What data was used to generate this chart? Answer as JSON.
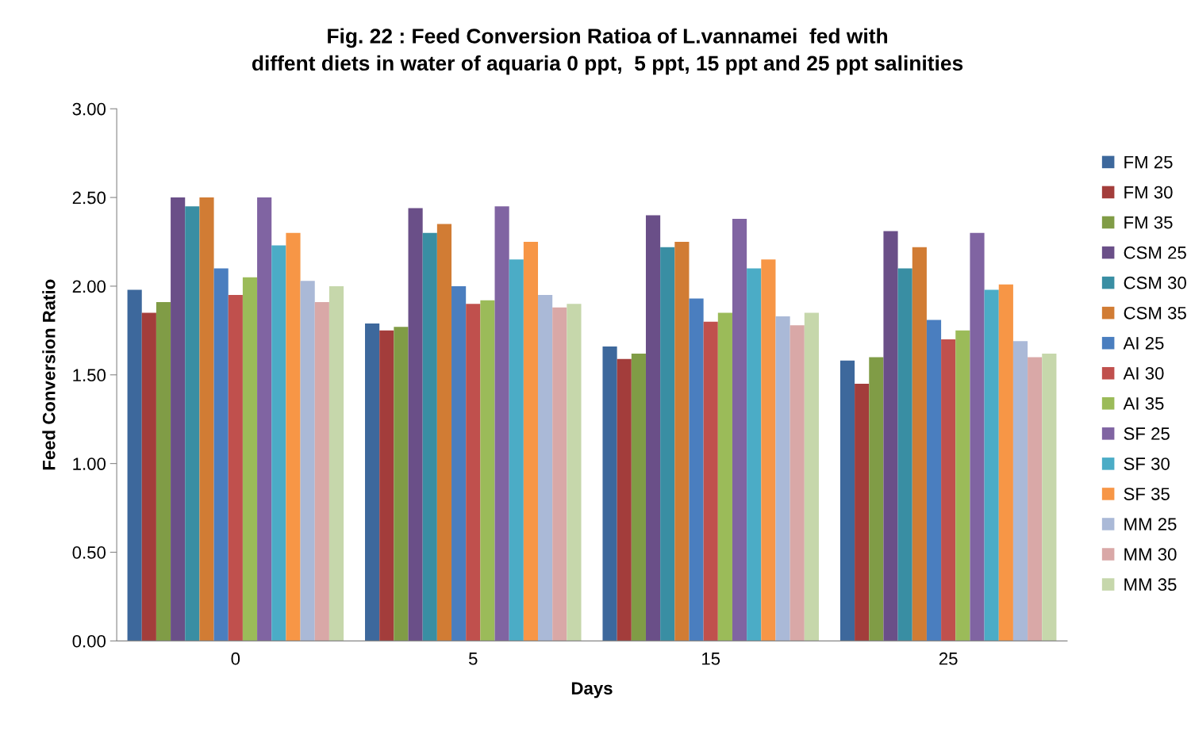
{
  "chart_data": {
    "type": "bar",
    "title": "Fig. 22 : Feed Conversion Ratioa of L.vannamei  fed with\ndiffent diets in water of aquaria 0 ppt,  5 ppt, 15 ppt and 25 ppt salinities",
    "xlabel": "Days",
    "ylabel": "Feed Conversion Ratio",
    "categories": [
      "0",
      "5",
      "15",
      "25"
    ],
    "ylim": [
      0,
      3
    ],
    "yticks": [
      {
        "value": 0,
        "label": "0.00"
      },
      {
        "value": 0.5,
        "label": "0.50"
      },
      {
        "value": 1,
        "label": "1.00"
      },
      {
        "value": 1.5,
        "label": "1.50"
      },
      {
        "value": 2,
        "label": "2.00"
      },
      {
        "value": 2.5,
        "label": "2.50"
      },
      {
        "value": 3,
        "label": "3.00"
      }
    ],
    "grid": false,
    "legend": "right",
    "series": [
      {
        "name": "FM 25",
        "color": "#3d689c",
        "values": [
          1.98,
          1.79,
          1.66,
          1.58
        ]
      },
      {
        "name": "FM 30",
        "color": "#a33d3b",
        "values": [
          1.85,
          1.75,
          1.59,
          1.45
        ]
      },
      {
        "name": "FM 35",
        "color": "#809c46",
        "values": [
          1.91,
          1.77,
          1.62,
          1.6
        ]
      },
      {
        "name": "CSM 25",
        "color": "#6a4f88",
        "values": [
          2.5,
          2.44,
          2.4,
          2.31
        ]
      },
      {
        "name": "CSM 30",
        "color": "#398ea3",
        "values": [
          2.45,
          2.3,
          2.22,
          2.1
        ]
      },
      {
        "name": "CSM 35",
        "color": "#d17c34",
        "values": [
          2.5,
          2.35,
          2.25,
          2.22
        ]
      },
      {
        "name": "AI 25",
        "color": "#4a7ebf",
        "values": [
          2.1,
          2.0,
          1.93,
          1.81
        ]
      },
      {
        "name": "AI 30",
        "color": "#c0504d",
        "values": [
          1.95,
          1.9,
          1.8,
          1.7
        ]
      },
      {
        "name": "AI 35",
        "color": "#9bbb59",
        "values": [
          2.05,
          1.92,
          1.85,
          1.75
        ]
      },
      {
        "name": "SF 25",
        "color": "#8064a2",
        "values": [
          2.5,
          2.45,
          2.38,
          2.3
        ]
      },
      {
        "name": "SF 30",
        "color": "#4bacc6",
        "values": [
          2.23,
          2.15,
          2.1,
          1.98
        ]
      },
      {
        "name": "SF 35",
        "color": "#f79646",
        "values": [
          2.3,
          2.25,
          2.15,
          2.01
        ]
      },
      {
        "name": "MM 25",
        "color": "#aab9d7",
        "values": [
          2.03,
          1.95,
          1.83,
          1.69
        ]
      },
      {
        "name": "MM 30",
        "color": "#d9a8a7",
        "values": [
          1.91,
          1.88,
          1.78,
          1.6
        ]
      },
      {
        "name": "MM 35",
        "color": "#c6d7ab",
        "values": [
          2.0,
          1.9,
          1.85,
          1.62
        ]
      }
    ]
  }
}
